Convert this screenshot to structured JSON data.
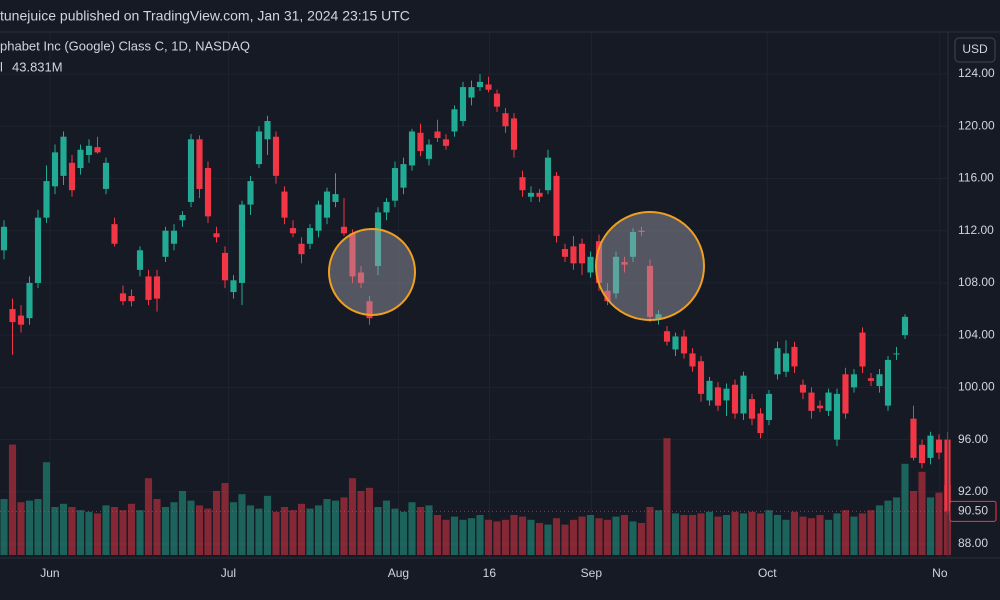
{
  "chart_data": {
    "type": "candlestick",
    "header": "tunejuice published on TradingView.com, Jan 31, 2024 23:15 UTC",
    "title": "phabet Inc (Google) Class C, 1D, NASDAQ",
    "volume_legend": {
      "label": "l",
      "value": "43.831M"
    },
    "currency": "USD",
    "up_color": "#22ab94",
    "down_color": "#f23645",
    "grid": true,
    "xlim": [
      -0.47,
      111.06
    ],
    "xticks": [
      {
        "value": 5.4,
        "label": "Jun"
      },
      {
        "value": 26.4,
        "label": "Jul"
      },
      {
        "value": 46.4,
        "label": "Aug"
      },
      {
        "value": 57.1,
        "label": "16"
      },
      {
        "value": 69.1,
        "label": "Sep"
      },
      {
        "value": 89.8,
        "label": "Oct"
      },
      {
        "value": 110.1,
        "label": "No"
      }
    ],
    "ylim": [
      86.93,
      127.22
    ],
    "yticks": [
      {
        "value": 88,
        "label": "88.00"
      },
      {
        "value": 92,
        "label": "92.00"
      },
      {
        "value": 96,
        "label": "96.00"
      },
      {
        "value": 100,
        "label": "100.00"
      },
      {
        "value": 104,
        "label": "104.00"
      },
      {
        "value": 108,
        "label": "108.00"
      },
      {
        "value": 112,
        "label": "112.00"
      },
      {
        "value": 116,
        "label": "116.00"
      },
      {
        "value": 120,
        "label": "120.00"
      },
      {
        "value": 124,
        "label": "124.00"
      }
    ],
    "last_price": {
      "value": 90.5,
      "label": "90.50"
    },
    "open": [
      110.5,
      106,
      105.5,
      105.3,
      108,
      113,
      115.4,
      116.2,
      117.2,
      116.8,
      117.8,
      118.4,
      115.2,
      112.5,
      107.2,
      107,
      109,
      108.5,
      108.5,
      110,
      111,
      112.8,
      114.2,
      119,
      116.8,
      111.8,
      110.3,
      107.3,
      108,
      114,
      117.1,
      119,
      119.2,
      115,
      112.2,
      111,
      111,
      112,
      113,
      114.2,
      112.3,
      111.8,
      108.8,
      106.6,
      109.3,
      113.4,
      114.3,
      115.3,
      117,
      119.5,
      117.5,
      119.6,
      119,
      119.6,
      120.4,
      122.2,
      123,
      123.2,
      122.5,
      121,
      120.6,
      116.1,
      114.6,
      114.9,
      115.1,
      116.2,
      110.6,
      110.8,
      111,
      108.8,
      111.2,
      107.4,
      107.2,
      109.6,
      110,
      112,
      109.3,
      105.2,
      104.3,
      102.9,
      103.9,
      102.6,
      102,
      99,
      100,
      99,
      100.2,
      98,
      99.1,
      98,
      97.5,
      101,
      101.2,
      103.1,
      100.2,
      99.6,
      98.6,
      98.2,
      96,
      101,
      100,
      104.2,
      100.7,
      100.1,
      98.6,
      102.6,
      104,
      97.6,
      95.6,
      94.6,
      96,
      96
    ],
    "high": [
      112.8,
      106.8,
      106.3,
      108.5,
      113.6,
      117,
      118.6,
      119.6,
      117.8,
      118.6,
      119,
      119.2,
      117.6,
      113,
      107.8,
      107.5,
      110.8,
      109,
      109,
      112.3,
      112.5,
      113.5,
      119.4,
      119.3,
      117.3,
      112.3,
      110.8,
      108.6,
      114.3,
      116.2,
      120,
      120.8,
      119.6,
      115.4,
      112.8,
      111.5,
      112.5,
      114.3,
      115.3,
      116.4,
      114.5,
      112.1,
      109.3,
      107,
      113.8,
      114.5,
      117.3,
      117.6,
      119.8,
      120.2,
      119,
      120.5,
      119.4,
      121.6,
      123.4,
      123.5,
      124,
      123.8,
      122.8,
      121.4,
      121,
      116.6,
      115.4,
      115.2,
      118.2,
      116.5,
      111,
      111.6,
      111.4,
      110.4,
      111.7,
      108,
      110.4,
      110,
      112.2,
      112.3,
      109.8,
      105.9,
      104.7,
      104.2,
      104.4,
      103,
      102.4,
      100.8,
      100.4,
      100.3,
      100.6,
      101.2,
      99.5,
      98.4,
      99.8,
      103.5,
      103.6,
      103.5,
      100.6,
      100,
      99,
      99.9,
      99.9,
      101.5,
      101.4,
      104.6,
      101.1,
      101.4,
      102.4,
      103.1,
      105.6,
      98.6,
      96,
      96.6,
      96.4,
      96.6
    ],
    "low": [
      109.8,
      102.5,
      104.2,
      104.8,
      107.6,
      112.6,
      114.8,
      115.5,
      114.6,
      116.3,
      117.2,
      117.9,
      114.8,
      110.8,
      106.3,
      106.2,
      108.5,
      106.3,
      105.8,
      109.6,
      110.5,
      112.3,
      113.8,
      114.5,
      112.6,
      111.1,
      107.6,
      106.8,
      106.3,
      113.2,
      116.8,
      117.8,
      115.6,
      112.5,
      111.5,
      109.5,
      110.6,
      111.5,
      112.5,
      113.8,
      111.6,
      108,
      107.6,
      104.8,
      108.6,
      112.8,
      113.8,
      114.8,
      116.6,
      117.7,
      117,
      118.8,
      118.2,
      119.2,
      120,
      121.6,
      122.7,
      122.6,
      121.1,
      119.5,
      117.6,
      114.6,
      114.2,
      114.2,
      114.8,
      111.1,
      109.6,
      109,
      108.6,
      108.4,
      107.4,
      106.3,
      106.8,
      108.8,
      109.6,
      111.6,
      105,
      104.8,
      103.2,
      102.4,
      102.2,
      101.2,
      98.9,
      98.6,
      98.2,
      97.8,
      97.6,
      97.5,
      97.1,
      96.1,
      97.1,
      100.6,
      100.8,
      101.1,
      99.1,
      97.6,
      98.1,
      97.8,
      95.5,
      97.6,
      99.6,
      101.1,
      100.1,
      99.6,
      98.2,
      102.1,
      103.7,
      94.4,
      93.8,
      94.1,
      94.5,
      90.3
    ],
    "close": [
      112.3,
      105,
      104.8,
      108,
      113,
      115.8,
      118,
      119.2,
      115.1,
      118.2,
      118.5,
      118,
      117.2,
      111,
      106.6,
      106.6,
      110.5,
      106.7,
      106.8,
      112,
      112,
      113.2,
      119,
      115.2,
      113.1,
      111.5,
      108.2,
      108.2,
      114,
      115.8,
      119.6,
      120.4,
      116.2,
      113,
      111.8,
      110.2,
      112.2,
      114,
      115,
      114.8,
      111.8,
      108.5,
      108,
      105.3,
      113.4,
      114.2,
      116.8,
      117.1,
      119.6,
      118.1,
      118.6,
      119.1,
      118.5,
      121.3,
      123,
      123,
      123.4,
      122.8,
      121.5,
      120,
      118.2,
      115.1,
      114.9,
      114.6,
      117.6,
      111.6,
      110,
      109.5,
      109.5,
      110,
      108,
      106.6,
      110,
      109.4,
      111.9,
      111.9,
      105.4,
      105.6,
      103.5,
      103.9,
      102.6,
      101.6,
      99.5,
      100.5,
      98.6,
      99.9,
      98,
      100.9,
      97.6,
      96.5,
      99.5,
      103,
      102.6,
      101.6,
      99.6,
      98.2,
      98.4,
      99.6,
      99.5,
      98,
      101,
      101.6,
      100.5,
      101,
      102.1,
      102.6,
      105.4,
      94.6,
      94.2,
      96.3,
      95,
      90.5
    ],
    "volume": [
      35,
      69,
      33,
      34,
      35,
      58,
      30,
      32,
      30,
      28,
      27,
      26,
      31,
      30,
      28,
      32,
      28,
      48,
      35,
      30,
      33,
      40,
      34,
      31,
      29,
      40,
      45,
      33,
      38,
      31,
      29,
      37,
      27,
      30,
      28,
      32,
      29,
      31,
      35,
      34,
      36,
      48,
      40,
      42,
      30,
      34,
      29,
      27,
      33,
      30,
      31,
      25,
      22,
      24,
      22,
      23,
      25,
      22,
      21,
      22,
      25,
      24,
      22,
      20,
      19,
      23,
      19,
      22,
      24,
      25,
      23,
      22,
      24,
      25,
      21,
      20,
      30,
      28,
      73,
      26,
      25,
      25,
      26,
      27,
      24,
      25,
      27,
      26,
      27,
      26,
      28,
      25,
      22,
      27,
      24,
      23,
      25,
      22,
      26,
      28,
      24,
      26,
      28,
      31,
      34,
      36,
      57,
      40,
      52,
      36,
      39,
      43.831
    ]
  }
}
